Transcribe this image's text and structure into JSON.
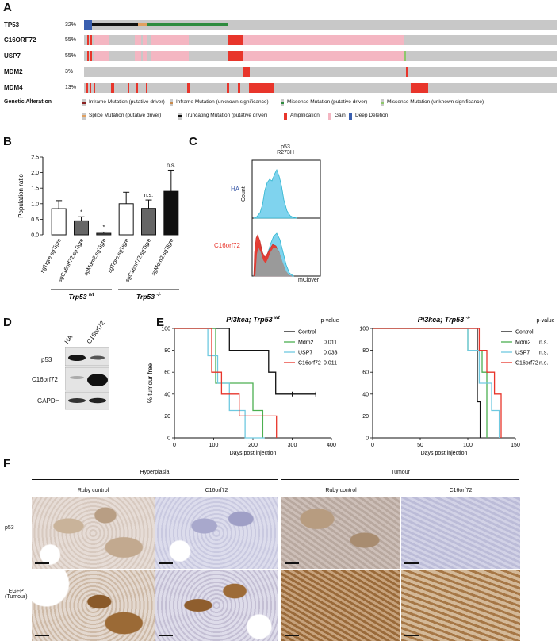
{
  "panels": {
    "A": "A",
    "B": "B",
    "C": "C",
    "D": "D",
    "E": "E",
    "F": "F"
  },
  "panel_a": {
    "genes": [
      {
        "name": "TP53",
        "pct": "32%"
      },
      {
        "name": "C16ORF72",
        "pct": "55%"
      },
      {
        "name": "USP7",
        "pct": "55%"
      },
      {
        "name": "MDM2",
        "pct": "3%"
      },
      {
        "name": "MDM4",
        "pct": "13%"
      }
    ],
    "legend_title": "Genetic Alteration",
    "legend": [
      {
        "label": "Inframe Mutation (putative driver)",
        "color": "#8a1f1f"
      },
      {
        "label": "Inframe Mutation (unknown significance)",
        "color": "#c98a4b"
      },
      {
        "label": "Missense Mutation (putative driver)",
        "color": "#2e8b3e"
      },
      {
        "label": "Missense Mutation (unknown significance)",
        "color": "#8dc76b"
      },
      {
        "label": "Splice Mutation (putative driver)",
        "color": "#e0a060"
      },
      {
        "label": "Truncating Mutation (putative driver)",
        "color": "#111111"
      },
      {
        "label": "Amplification",
        "color": "#e8352b"
      },
      {
        "label": "Gain",
        "color": "#f4b6c2"
      },
      {
        "label": "Deep Deletion",
        "color": "#3a5fb0"
      }
    ],
    "colors": {
      "background": "#c8c8c8",
      "amp": "#e8352b",
      "gain": "#f4b6c2",
      "deletion": "#3a5fb0",
      "truncating": "#111111",
      "missense": "#2e8b3e",
      "splice": "#e0a060"
    }
  },
  "panel_b": {
    "chart_data": {
      "type": "bar",
      "ylabel": "Population ratio",
      "ylim": [
        0,
        2.5
      ],
      "yticks": [
        "0.0",
        "0.5",
        "1.0",
        "1.5",
        "2.0",
        "2.5"
      ],
      "categories": [
        "sgTigre:sgTigre",
        "sgC16orf72:sgTigre",
        "sgMdm2:sgTigre",
        "sgTigre:sgTigre",
        "sgC16orf72:sgTigre",
        "sgMdm2:sgTigre"
      ],
      "values": [
        0.84,
        0.45,
        0.05,
        1.0,
        0.85,
        1.4
      ],
      "errors": [
        0.26,
        0.13,
        0.04,
        0.37,
        0.27,
        0.68
      ],
      "fills": [
        "#ffffff",
        "#666666",
        "#555555",
        "#ffffff",
        "#666666",
        "#111111"
      ],
      "annotations": [
        "",
        "*",
        "*",
        "",
        "n.s.",
        "n.s."
      ],
      "groups": [
        {
          "label": "Trp53",
          "sup": "wt"
        },
        {
          "label": "Trp53",
          "sup": "-/-"
        }
      ]
    }
  },
  "panel_c": {
    "title_line1": "p53",
    "title_line2": "R273H",
    "ylabel": "Count",
    "xlabel": "mClover",
    "sample_top": "HA",
    "sample_bottom": "C16orf72",
    "colors": {
      "ha": "#3b5aa8",
      "c16": "#e8352b",
      "fill_cyan": "#7fd3ee"
    }
  },
  "panel_d": {
    "lanes": [
      "HA",
      "C16orf72"
    ],
    "rows": [
      "p53",
      "C16orf72",
      "GAPDH"
    ]
  },
  "panel_e": {
    "chart_data": [
      {
        "type": "line",
        "title": "Pi3kca; Trp53",
        "title_sup": "wt",
        "ylabel": "% tumour free",
        "xlabel": "Days post injection",
        "xlim": [
          0,
          400
        ],
        "ylim": [
          0,
          100
        ],
        "xticks": [
          "0",
          "100",
          "200",
          "300",
          "400"
        ],
        "yticks": [
          "0",
          "20",
          "40",
          "60",
          "80",
          "100"
        ],
        "pvalue_header": "p-value",
        "series": [
          {
            "name": "Control",
            "color": "#111111",
            "pvalue": "",
            "steps": [
              [
                0,
                100
              ],
              [
                140,
                100
              ],
              [
                140,
                80
              ],
              [
                240,
                80
              ],
              [
                240,
                60
              ],
              [
                258,
                60
              ],
              [
                258,
                40
              ],
              [
                360,
                40
              ]
            ]
          },
          {
            "name": "Mdm2",
            "color": "#4caf50",
            "pvalue": "0.011",
            "steps": [
              [
                0,
                100
              ],
              [
                105,
                100
              ],
              [
                105,
                50
              ],
              [
                200,
                50
              ],
              [
                200,
                25
              ],
              [
                225,
                25
              ],
              [
                225,
                0
              ]
            ]
          },
          {
            "name": "USP7",
            "color": "#6fc9e0",
            "pvalue": "0.033",
            "steps": [
              [
                0,
                100
              ],
              [
                85,
                100
              ],
              [
                85,
                75
              ],
              [
                110,
                75
              ],
              [
                110,
                50
              ],
              [
                140,
                50
              ],
              [
                140,
                25
              ],
              [
                180,
                25
              ],
              [
                180,
                0
              ],
              [
                230,
                0
              ]
            ]
          },
          {
            "name": "C16orf72",
            "color": "#e8352b",
            "pvalue": "0.011",
            "steps": [
              [
                0,
                100
              ],
              [
                95,
                100
              ],
              [
                95,
                60
              ],
              [
                120,
                60
              ],
              [
                120,
                40
              ],
              [
                165,
                40
              ],
              [
                165,
                20
              ],
              [
                260,
                20
              ],
              [
                260,
                0
              ]
            ]
          }
        ]
      },
      {
        "type": "line",
        "title": "Pi3kca; Trp53",
        "title_sup": "-/-",
        "ylabel": "",
        "xlabel": "Days post injection",
        "xlim": [
          0,
          150
        ],
        "ylim": [
          0,
          100
        ],
        "xticks": [
          "0",
          "50",
          "100",
          "150"
        ],
        "yticks": [
          "0",
          "20",
          "40",
          "60",
          "80",
          "100"
        ],
        "pvalue_header": "p-value",
        "series": [
          {
            "name": "Control",
            "color": "#111111",
            "pvalue": "",
            "steps": [
              [
                0,
                100
              ],
              [
                110,
                100
              ],
              [
                110,
                33
              ],
              [
                113,
                33
              ],
              [
                113,
                0
              ]
            ]
          },
          {
            "name": "Mdm2",
            "color": "#4caf50",
            "pvalue": "n.s.",
            "steps": [
              [
                0,
                100
              ],
              [
                100,
                100
              ],
              [
                100,
                80
              ],
              [
                115,
                80
              ],
              [
                115,
                60
              ],
              [
                120,
                60
              ],
              [
                120,
                0
              ]
            ]
          },
          {
            "name": "USP7",
            "color": "#6fc9e0",
            "pvalue": "n.s.",
            "steps": [
              [
                0,
                100
              ],
              [
                100,
                100
              ],
              [
                100,
                80
              ],
              [
                112,
                80
              ],
              [
                112,
                50
              ],
              [
                125,
                50
              ],
              [
                125,
                25
              ],
              [
                133,
                25
              ],
              [
                133,
                0
              ]
            ]
          },
          {
            "name": "C16orf72",
            "color": "#e8352b",
            "pvalue": "n.s.",
            "steps": [
              [
                0,
                100
              ],
              [
                112,
                100
              ],
              [
                112,
                80
              ],
              [
                120,
                80
              ],
              [
                120,
                60
              ],
              [
                128,
                60
              ],
              [
                128,
                40
              ],
              [
                135,
                40
              ],
              [
                135,
                0
              ]
            ]
          }
        ]
      }
    ]
  },
  "panel_f": {
    "group_left": "Hyperplasia",
    "group_right": "Tumour",
    "columns": [
      "Ruby control",
      "C16orf72",
      "Ruby control",
      "C16orf72"
    ],
    "row1": "p53",
    "row2_line1": "EGFP",
    "row2_line2": "(Tumour)"
  }
}
